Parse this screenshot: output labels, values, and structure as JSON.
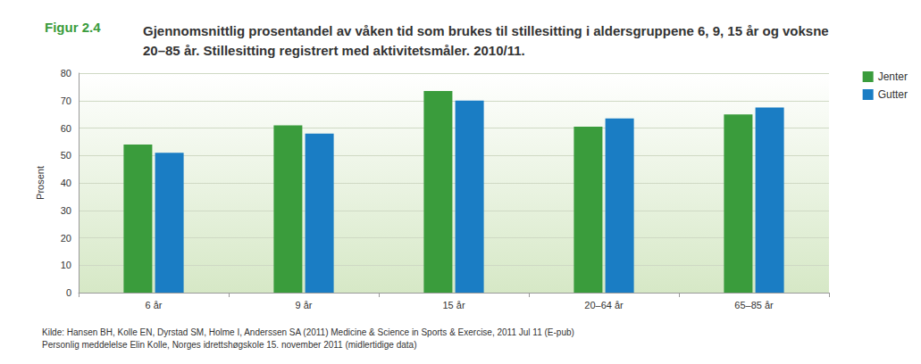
{
  "chart_data": {
    "type": "bar",
    "figure_label": "Figur 2.4",
    "title": "Gjennomsnittlig prosentandel av våken tid som brukes til stillesitting i aldersgruppene 6, 9, 15 år og voksne 20–85 år. Stillesitting registrert med aktivitetsmåler. 2010/11.",
    "y_label": "Prosent",
    "categories": [
      "6 år",
      "9 år",
      "15 år",
      "20–64 år",
      "65–85 år"
    ],
    "series": [
      {
        "name": "Jenter",
        "color": "#3a9c3c",
        "values": [
          54,
          61,
          73.5,
          60.5,
          65
        ]
      },
      {
        "name": "Gutter",
        "color": "#1a7dc4",
        "values": [
          51,
          58,
          70,
          63.5,
          67.5
        ]
      }
    ],
    "ylim": [
      0,
      80
    ],
    "yticks": [
      0,
      10,
      20,
      30,
      40,
      50,
      60,
      70,
      80
    ],
    "grid": true,
    "legend": "top-right",
    "source": [
      "Kilde: Hansen BH, Kolle EN, Dyrstad SM, Holme I, Anderssen SA (2011) Medicine & Science in Sports & Exercise, 2011 Jul 11 (E-pub)",
      "Personlig meddelelse Elin Kolle, Norges idrettshøgskole 15. november 2011 (midlertidige data)"
    ]
  }
}
